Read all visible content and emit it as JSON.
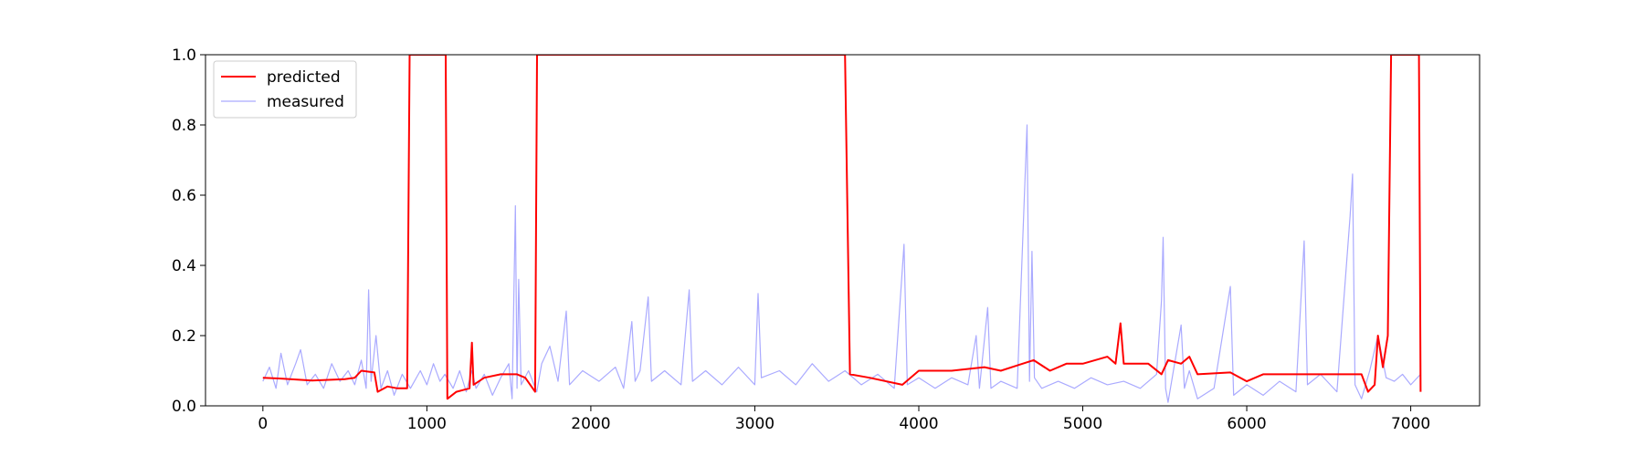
{
  "chart_data": {
    "type": "line",
    "title": "",
    "xlabel": "",
    "ylabel": "",
    "xlim": [
      -350,
      7420
    ],
    "ylim": [
      0,
      1.0
    ],
    "xticks": [
      0,
      1000,
      2000,
      3000,
      4000,
      5000,
      6000,
      7000
    ],
    "yticks": [
      0.0,
      0.2,
      0.4,
      0.6,
      0.8,
      1.0
    ],
    "xtick_labels": [
      "0",
      "1000",
      "2000",
      "3000",
      "4000",
      "5000",
      "6000",
      "7000"
    ],
    "ytick_labels": [
      "0.0",
      "0.2",
      "0.4",
      "0.6",
      "0.8",
      "1.0"
    ],
    "grid": false,
    "legend_position": "top-left",
    "series": [
      {
        "name": "predicted",
        "color": "#ff0000",
        "points": [
          [
            0,
            0.08
          ],
          [
            100,
            0.078
          ],
          [
            200,
            0.075
          ],
          [
            300,
            0.072
          ],
          [
            400,
            0.074
          ],
          [
            500,
            0.076
          ],
          [
            560,
            0.08
          ],
          [
            600,
            0.1
          ],
          [
            680,
            0.095
          ],
          [
            700,
            0.04
          ],
          [
            760,
            0.055
          ],
          [
            820,
            0.05
          ],
          [
            880,
            0.05
          ],
          [
            895,
            1.0
          ],
          [
            1115,
            1.0
          ],
          [
            1125,
            0.02
          ],
          [
            1180,
            0.04
          ],
          [
            1260,
            0.05
          ],
          [
            1275,
            0.18
          ],
          [
            1285,
            0.06
          ],
          [
            1350,
            0.08
          ],
          [
            1450,
            0.09
          ],
          [
            1550,
            0.09
          ],
          [
            1600,
            0.08
          ],
          [
            1660,
            0.04
          ],
          [
            1672,
            1.0
          ],
          [
            1680,
            1.0
          ],
          [
            3550,
            1.0
          ],
          [
            3580,
            0.09
          ],
          [
            3700,
            0.08
          ],
          [
            3900,
            0.06
          ],
          [
            4000,
            0.1
          ],
          [
            4200,
            0.1
          ],
          [
            4400,
            0.11
          ],
          [
            4500,
            0.1
          ],
          [
            4600,
            0.115
          ],
          [
            4700,
            0.13
          ],
          [
            4800,
            0.1
          ],
          [
            4900,
            0.12
          ],
          [
            5000,
            0.12
          ],
          [
            5150,
            0.14
          ],
          [
            5200,
            0.12
          ],
          [
            5230,
            0.235
          ],
          [
            5250,
            0.12
          ],
          [
            5400,
            0.12
          ],
          [
            5480,
            0.09
          ],
          [
            5520,
            0.13
          ],
          [
            5600,
            0.12
          ],
          [
            5650,
            0.14
          ],
          [
            5700,
            0.09
          ],
          [
            5900,
            0.095
          ],
          [
            6000,
            0.07
          ],
          [
            6100,
            0.09
          ],
          [
            6300,
            0.09
          ],
          [
            6400,
            0.09
          ],
          [
            6600,
            0.09
          ],
          [
            6700,
            0.09
          ],
          [
            6740,
            0.04
          ],
          [
            6780,
            0.06
          ],
          [
            6800,
            0.2
          ],
          [
            6830,
            0.11
          ],
          [
            6860,
            0.2
          ],
          [
            6880,
            1.0
          ],
          [
            7050,
            1.0
          ],
          [
            7060,
            0.04
          ]
        ]
      },
      {
        "name": "measured",
        "color": "#aaaaff",
        "points": [
          [
            0,
            0.07
          ],
          [
            40,
            0.11
          ],
          [
            80,
            0.05
          ],
          [
            110,
            0.15
          ],
          [
            150,
            0.06
          ],
          [
            200,
            0.12
          ],
          [
            230,
            0.16
          ],
          [
            270,
            0.06
          ],
          [
            320,
            0.09
          ],
          [
            370,
            0.05
          ],
          [
            420,
            0.12
          ],
          [
            470,
            0.07
          ],
          [
            520,
            0.1
          ],
          [
            560,
            0.06
          ],
          [
            600,
            0.13
          ],
          [
            630,
            0.05
          ],
          [
            645,
            0.33
          ],
          [
            660,
            0.07
          ],
          [
            690,
            0.2
          ],
          [
            720,
            0.05
          ],
          [
            760,
            0.1
          ],
          [
            800,
            0.03
          ],
          [
            850,
            0.09
          ],
          [
            900,
            0.05
          ],
          [
            960,
            0.1
          ],
          [
            1000,
            0.06
          ],
          [
            1040,
            0.12
          ],
          [
            1080,
            0.07
          ],
          [
            1110,
            0.09
          ],
          [
            1160,
            0.05
          ],
          [
            1200,
            0.1
          ],
          [
            1240,
            0.04
          ],
          [
            1275,
            0.1
          ],
          [
            1300,
            0.05
          ],
          [
            1350,
            0.09
          ],
          [
            1400,
            0.03
          ],
          [
            1450,
            0.08
          ],
          [
            1500,
            0.12
          ],
          [
            1520,
            0.02
          ],
          [
            1540,
            0.57
          ],
          [
            1550,
            0.05
          ],
          [
            1560,
            0.36
          ],
          [
            1575,
            0.06
          ],
          [
            1620,
            0.1
          ],
          [
            1670,
            0.04
          ],
          [
            1700,
            0.12
          ],
          [
            1750,
            0.17
          ],
          [
            1800,
            0.07
          ],
          [
            1850,
            0.27
          ],
          [
            1870,
            0.06
          ],
          [
            1950,
            0.1
          ],
          [
            2050,
            0.07
          ],
          [
            2150,
            0.11
          ],
          [
            2200,
            0.05
          ],
          [
            2250,
            0.24
          ],
          [
            2270,
            0.07
          ],
          [
            2300,
            0.1
          ],
          [
            2350,
            0.31
          ],
          [
            2370,
            0.07
          ],
          [
            2450,
            0.1
          ],
          [
            2550,
            0.06
          ],
          [
            2600,
            0.33
          ],
          [
            2620,
            0.07
          ],
          [
            2700,
            0.1
          ],
          [
            2800,
            0.06
          ],
          [
            2900,
            0.11
          ],
          [
            3000,
            0.06
          ],
          [
            3020,
            0.32
          ],
          [
            3040,
            0.08
          ],
          [
            3150,
            0.1
          ],
          [
            3250,
            0.06
          ],
          [
            3350,
            0.12
          ],
          [
            3450,
            0.07
          ],
          [
            3550,
            0.1
          ],
          [
            3650,
            0.06
          ],
          [
            3750,
            0.09
          ],
          [
            3850,
            0.05
          ],
          [
            3910,
            0.46
          ],
          [
            3930,
            0.06
          ],
          [
            4000,
            0.08
          ],
          [
            4100,
            0.05
          ],
          [
            4200,
            0.08
          ],
          [
            4300,
            0.06
          ],
          [
            4350,
            0.2
          ],
          [
            4370,
            0.05
          ],
          [
            4420,
            0.28
          ],
          [
            4440,
            0.05
          ],
          [
            4500,
            0.07
          ],
          [
            4600,
            0.05
          ],
          [
            4660,
            0.8
          ],
          [
            4675,
            0.07
          ],
          [
            4690,
            0.44
          ],
          [
            4705,
            0.08
          ],
          [
            4750,
            0.05
          ],
          [
            4850,
            0.07
          ],
          [
            4950,
            0.05
          ],
          [
            5050,
            0.08
          ],
          [
            5150,
            0.06
          ],
          [
            5250,
            0.07
          ],
          [
            5350,
            0.05
          ],
          [
            5450,
            0.09
          ],
          [
            5480,
            0.3
          ],
          [
            5490,
            0.48
          ],
          [
            5505,
            0.05
          ],
          [
            5520,
            0.01
          ],
          [
            5600,
            0.23
          ],
          [
            5620,
            0.05
          ],
          [
            5650,
            0.1
          ],
          [
            5700,
            0.02
          ],
          [
            5800,
            0.05
          ],
          [
            5900,
            0.34
          ],
          [
            5920,
            0.03
          ],
          [
            6000,
            0.06
          ],
          [
            6100,
            0.03
          ],
          [
            6200,
            0.07
          ],
          [
            6300,
            0.04
          ],
          [
            6350,
            0.47
          ],
          [
            6370,
            0.06
          ],
          [
            6450,
            0.09
          ],
          [
            6550,
            0.04
          ],
          [
            6630,
            0.54
          ],
          [
            6645,
            0.66
          ],
          [
            6660,
            0.06
          ],
          [
            6700,
            0.02
          ],
          [
            6750,
            0.1
          ],
          [
            6800,
            0.2
          ],
          [
            6850,
            0.08
          ],
          [
            6900,
            0.07
          ],
          [
            6950,
            0.09
          ],
          [
            7000,
            0.06
          ],
          [
            7060,
            0.09
          ]
        ]
      }
    ]
  }
}
